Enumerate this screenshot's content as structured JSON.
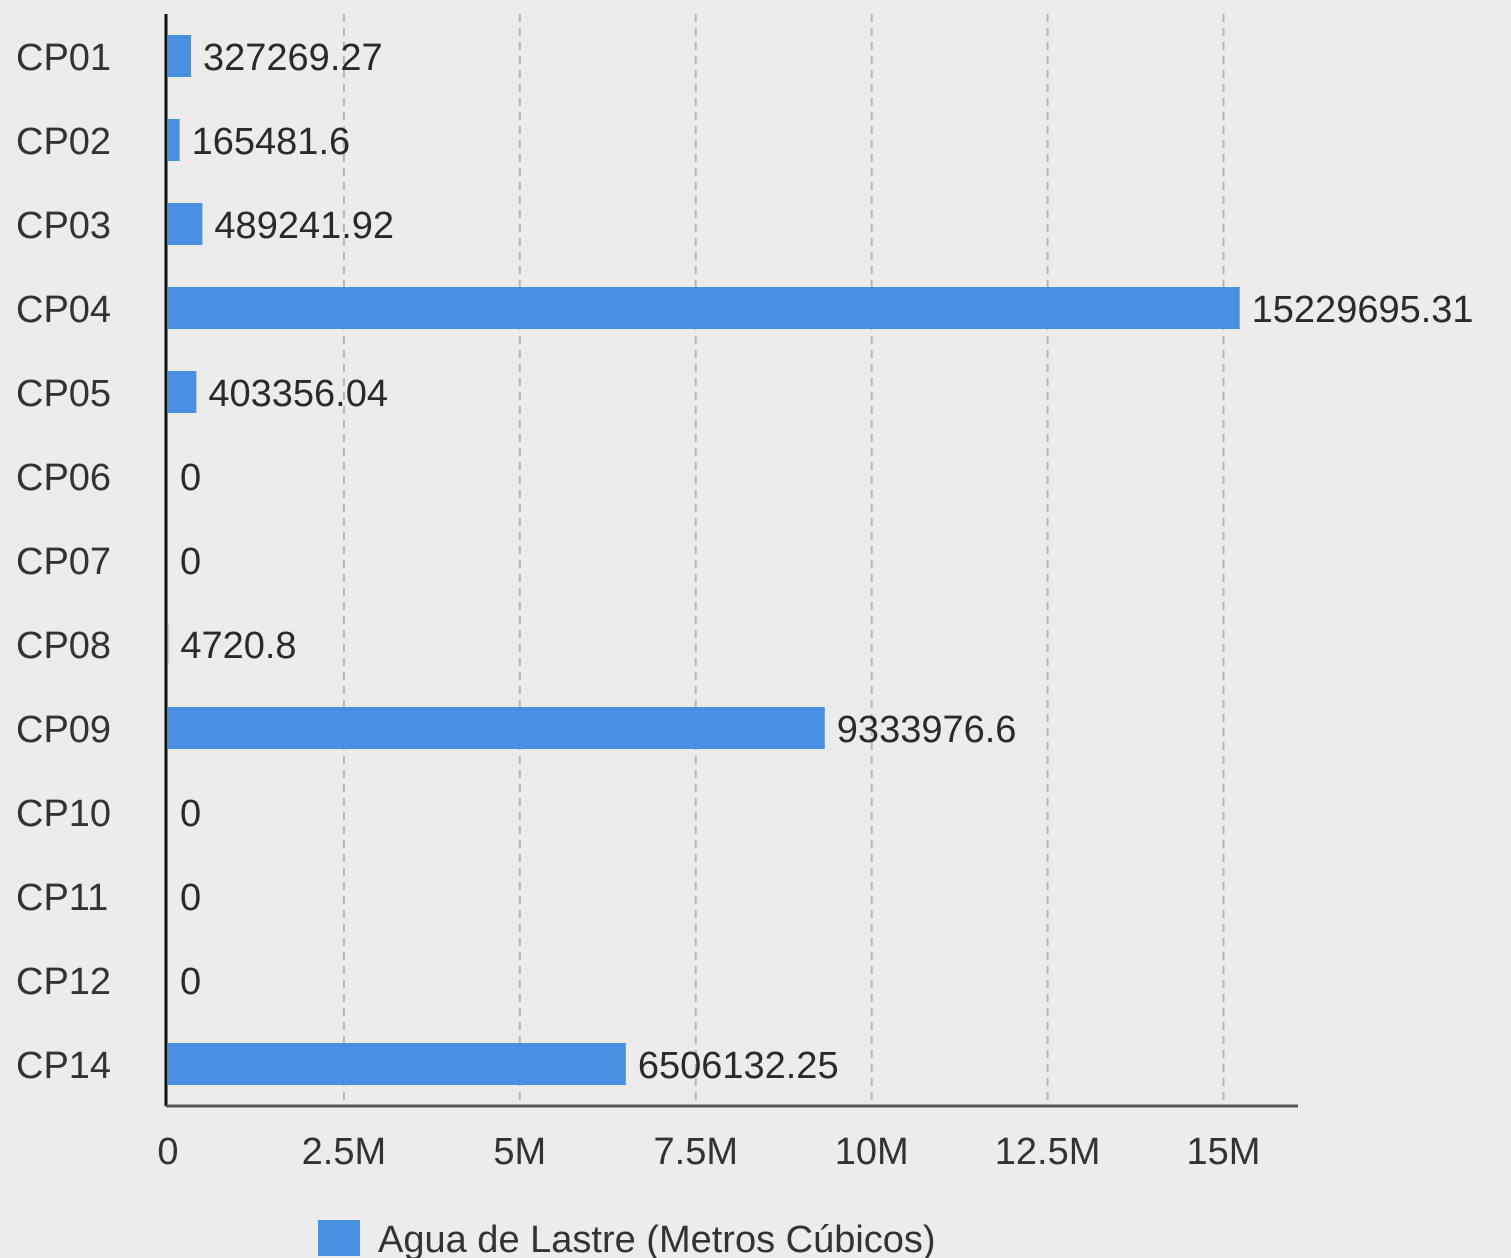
{
  "chart_data": {
    "type": "bar",
    "orientation": "horizontal",
    "categories": [
      "CP01",
      "CP02",
      "CP03",
      "CP04",
      "CP05",
      "CP06",
      "CP07",
      "CP08",
      "CP09",
      "CP10",
      "CP11",
      "CP12",
      "CP14"
    ],
    "series": [
      {
        "name": "Agua de Lastre (Metros Cúbicos)",
        "color": "#4a90e2",
        "values": [
          327269.27,
          165481.6,
          489241.92,
          15229695.31,
          403356.04,
          0,
          0,
          4720.8,
          9333976.6,
          0,
          0,
          0,
          6506132.25
        ]
      }
    ],
    "data_labels": [
      "327269.27",
      "165481.6",
      "489241.92",
      "15229695.31",
      "403356.04",
      "0",
      "0",
      "4720.8",
      "9333976.6",
      "0",
      "0",
      "0",
      "6506132.25"
    ],
    "x_ticks": [
      0,
      2500000,
      5000000,
      7500000,
      10000000,
      12500000,
      15000000
    ],
    "x_tick_labels": [
      "0",
      "2.5M",
      "5M",
      "7.5M",
      "10M",
      "12.5M",
      "15M"
    ],
    "xlim": [
      0,
      16000000
    ],
    "grid": true,
    "legend_position": "bottom"
  }
}
